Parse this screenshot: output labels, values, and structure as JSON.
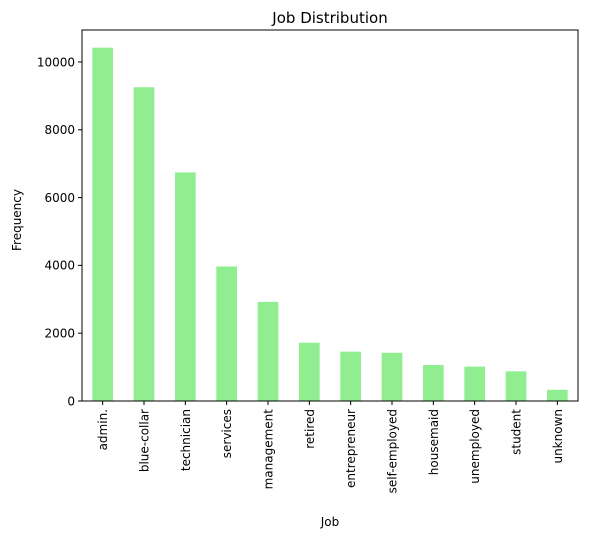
{
  "chart_data": {
    "type": "bar",
    "title": "Job Distribution",
    "xlabel": "Job",
    "ylabel": "Frequency",
    "categories": [
      "admin.",
      "blue-collar",
      "technician",
      "services",
      "management",
      "retired",
      "entrepreneur",
      "self-employed",
      "housemaid",
      "unemployed",
      "student",
      "unknown"
    ],
    "values": [
      10422,
      9254,
      6743,
      3969,
      2924,
      1720,
      1456,
      1421,
      1060,
      1014,
      875,
      330
    ],
    "ylim": [
      0,
      10943
    ],
    "yticks": [
      0,
      2000,
      4000,
      6000,
      8000,
      10000
    ],
    "bar_color": "#90ee90",
    "grid": false,
    "legend": false
  }
}
